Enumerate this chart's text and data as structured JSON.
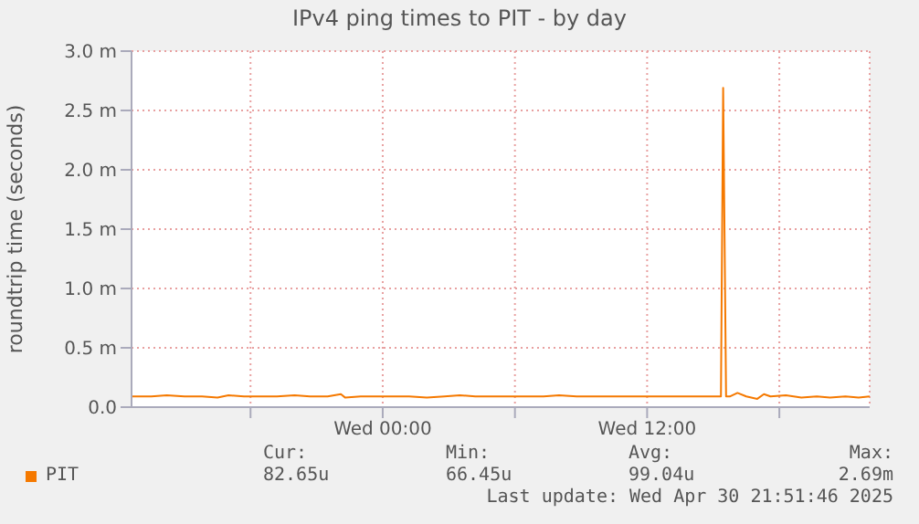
{
  "chart_data": {
    "type": "line",
    "title": "IPv4 ping times to PIT - by day",
    "ylabel": "roundtrip time (seconds)",
    "x": [
      "2025-04-29T12:36",
      "2025-04-29T13:30",
      "2025-04-29T14:12",
      "2025-04-29T15:00",
      "2025-04-29T15:48",
      "2025-04-29T16:30",
      "2025-04-29T17:00",
      "2025-04-29T17:42",
      "2025-04-29T18:30",
      "2025-04-29T19:12",
      "2025-04-29T20:00",
      "2025-04-29T20:42",
      "2025-04-29T21:30",
      "2025-04-29T22:06",
      "2025-04-29T22:18",
      "2025-04-29T23:00",
      "2025-04-29T23:42",
      "2025-04-30T00:30",
      "2025-04-30T01:12",
      "2025-04-30T02:00",
      "2025-04-30T02:48",
      "2025-04-30T03:30",
      "2025-04-30T04:12",
      "2025-04-30T05:00",
      "2025-04-30T05:48",
      "2025-04-30T06:30",
      "2025-04-30T07:18",
      "2025-04-30T08:00",
      "2025-04-30T08:48",
      "2025-04-30T09:30",
      "2025-04-30T10:18",
      "2025-04-30T11:00",
      "2025-04-30T11:48",
      "2025-04-30T12:36",
      "2025-04-30T13:24",
      "2025-04-30T14:12",
      "2025-04-30T15:00",
      "2025-04-30T15:21",
      "2025-04-30T15:27",
      "2025-04-30T15:35",
      "2025-04-30T15:45",
      "2025-04-30T16:06",
      "2025-04-30T16:30",
      "2025-04-30T17:00",
      "2025-04-30T17:18",
      "2025-04-30T17:36",
      "2025-04-30T18:18",
      "2025-04-30T19:00",
      "2025-04-30T19:42",
      "2025-04-30T20:18",
      "2025-04-30T21:00",
      "2025-04-30T21:36",
      "2025-04-30T22:06"
    ],
    "series": [
      {
        "name": "PIT",
        "color": "#f57900",
        "values": [
          0.09,
          0.09,
          0.1,
          0.09,
          0.09,
          0.08,
          0.1,
          0.09,
          0.09,
          0.09,
          0.1,
          0.09,
          0.09,
          0.11,
          0.08,
          0.09,
          0.09,
          0.09,
          0.09,
          0.08,
          0.09,
          0.1,
          0.09,
          0.09,
          0.09,
          0.09,
          0.09,
          0.1,
          0.09,
          0.09,
          0.09,
          0.09,
          0.09,
          0.09,
          0.09,
          0.09,
          0.09,
          0.09,
          2.69,
          0.09,
          0.09,
          0.12,
          0.09,
          0.07,
          0.11,
          0.09,
          0.1,
          0.08,
          0.09,
          0.08,
          0.09,
          0.08,
          0.09
        ]
      }
    ],
    "xlim": [
      "2025-04-29T12:36",
      "2025-04-30T22:06"
    ],
    "xticks": [
      {
        "value": "2025-04-29T18:00",
        "label": null
      },
      {
        "value": "2025-04-30T00:00",
        "label": "Wed 00:00"
      },
      {
        "value": "2025-04-30T06:00",
        "label": null
      },
      {
        "value": "2025-04-30T12:00",
        "label": "Wed 12:00"
      },
      {
        "value": "2025-04-30T18:00",
        "label": null
      }
    ],
    "ylim": [
      0,
      3
    ],
    "yticks": [
      {
        "value": 0,
        "label": "0.0"
      },
      {
        "value": 0.5,
        "label": "0.5 m"
      },
      {
        "value": 1,
        "label": "1.0 m"
      },
      {
        "value": 1.5,
        "label": "1.5 m"
      },
      {
        "value": 2,
        "label": "2.0 m"
      },
      {
        "value": 2.5,
        "label": "2.5 m"
      },
      {
        "value": 3,
        "label": "3.0 m"
      }
    ],
    "grid": true,
    "legend": "bottom",
    "marker": "none",
    "line_style": "solid",
    "annotations": [
      "Cur:",
      "Min:",
      "Avg:",
      "Max:",
      "82.65u",
      "66.45u",
      "99.04u",
      "2.69m",
      "Last update: Wed Apr 30 21:51:46 2025"
    ]
  }
}
